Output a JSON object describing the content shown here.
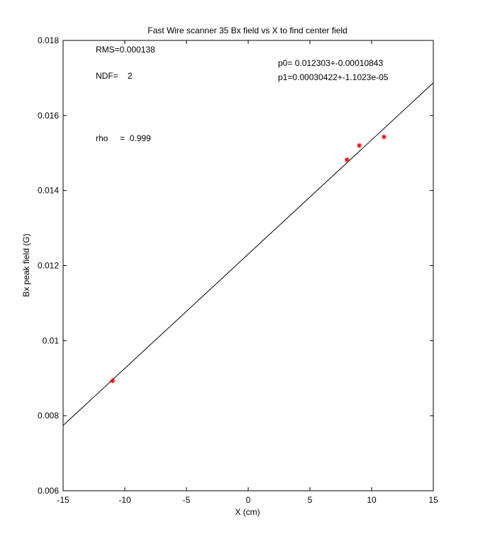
{
  "chart_data": {
    "type": "scatter",
    "title": "Fast Wire scanner 35 Bx field vs X to find center field",
    "xlabel": "X (cm)",
    "ylabel": "Bx peak field (G)",
    "xlim": [
      -15,
      15
    ],
    "ylim": [
      0.006,
      0.018
    ],
    "x_ticks": [
      -15,
      -10,
      -5,
      0,
      5,
      10,
      15
    ],
    "x_tick_labels": [
      "-15",
      "-10",
      "-5",
      "0",
      "5",
      "10",
      "15"
    ],
    "y_ticks": [
      0.006,
      0.008,
      0.01,
      0.012,
      0.014,
      0.016,
      0.018
    ],
    "y_tick_labels": [
      "0.006",
      "0.008",
      "0.01",
      "0.012",
      "0.014",
      "0.016",
      "0.018"
    ],
    "grid": false,
    "series": [
      {
        "type": "scatter",
        "marker": "asterisk",
        "color": "#ff0000",
        "x": [
          -11,
          8,
          9,
          11
        ],
        "y": [
          0.00893,
          0.01482,
          0.0152,
          0.01543
        ]
      },
      {
        "type": "line",
        "color": "#000000",
        "x": [
          -15,
          15
        ],
        "y": [
          0.00774,
          0.01687
        ]
      }
    ],
    "annotations": [
      "RMS=0.000138",
      "NDF=    2",
      "rho     =  0.999",
      "p0= 0.012303+-0.00010843",
      "p1=0.00030422+-1.1023e-05"
    ]
  }
}
